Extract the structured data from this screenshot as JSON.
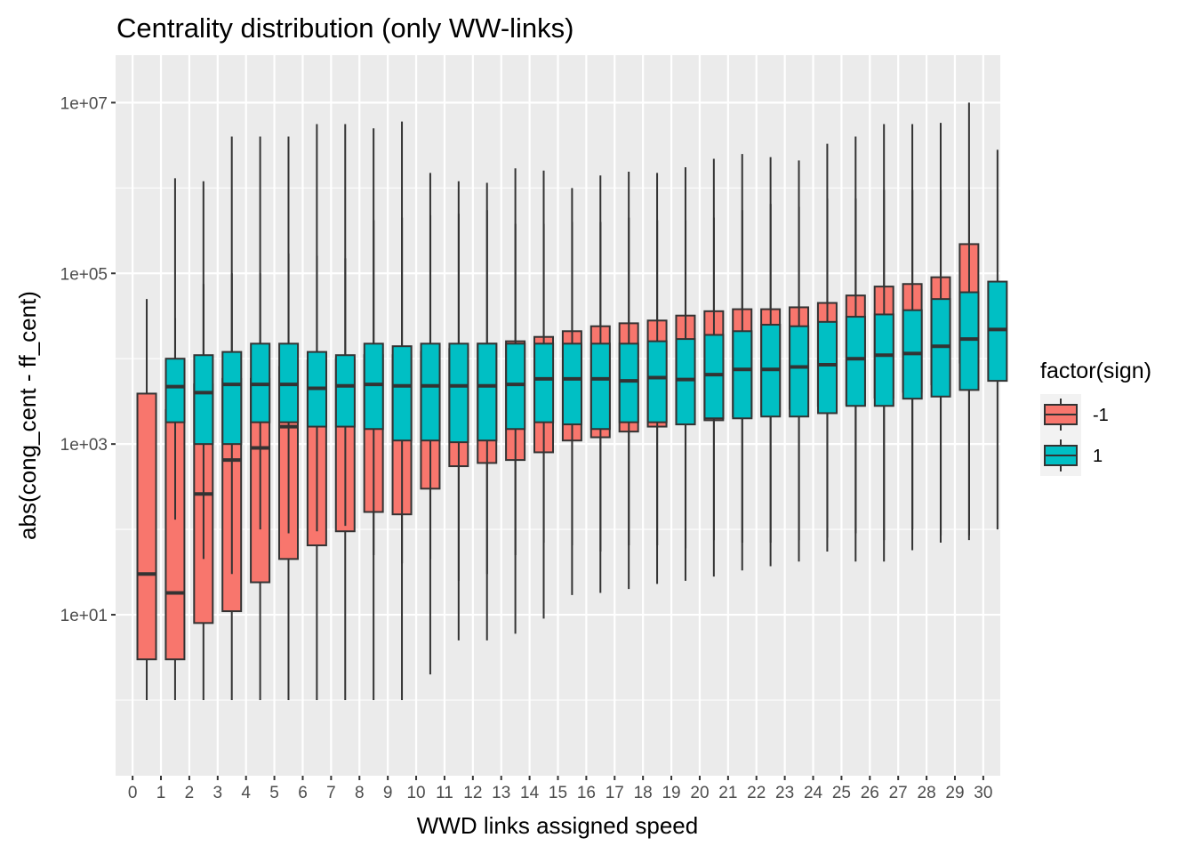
{
  "chart_data": {
    "type": "boxplot",
    "title": "Centrality distribution (only WW-links)",
    "xlabel": "WWD links assigned speed",
    "ylabel": "abs(cong_cent - ff_cent)",
    "y_scale": "log10",
    "ylim": [
      0.13,
      36000000.0
    ],
    "y_ticks": [
      {
        "value": 10,
        "label": "1e+01"
      },
      {
        "value": 1000,
        "label": "1e+03"
      },
      {
        "value": 100000,
        "label": "1e+05"
      },
      {
        "value": 10000000,
        "label": "1e+07"
      }
    ],
    "categories": [
      "0",
      "1",
      "2",
      "3",
      "4",
      "5",
      "6",
      "7",
      "8",
      "9",
      "10",
      "11",
      "12",
      "13",
      "14",
      "15",
      "16",
      "17",
      "18",
      "19",
      "20",
      "21",
      "22",
      "23",
      "24",
      "25",
      "26",
      "27",
      "28",
      "29",
      "30"
    ],
    "background": "#ebebeb",
    "grid": true,
    "legend": {
      "title": "factor(sign)",
      "position": "right"
    },
    "series": [
      {
        "name": "-1",
        "color": "#F8766D",
        "boxes": [
          {
            "x": "1",
            "min": 1,
            "q1": 3,
            "median": 30,
            "q3": 3900,
            "max": 50000
          },
          {
            "x": "2",
            "min": 1,
            "q1": 3,
            "median": 18,
            "q3": 2500,
            "max": 1300000
          },
          {
            "x": "3",
            "min": 1,
            "q1": 8,
            "median": 260,
            "q3": 5000,
            "max": 1200000
          },
          {
            "x": "4",
            "min": 1,
            "q1": 11,
            "median": 650,
            "q3": 5800,
            "max": 4000000
          },
          {
            "x": "5",
            "min": 1,
            "q1": 24,
            "median": 900,
            "q3": 5800,
            "max": 4000000
          },
          {
            "x": "6",
            "min": 1,
            "q1": 45,
            "median": 1600,
            "q3": 8000,
            "max": 4000000
          },
          {
            "x": "7",
            "min": 1,
            "q1": 65,
            "median": 1900,
            "q3": 9500,
            "max": 5600000
          },
          {
            "x": "8",
            "min": 1,
            "q1": 95,
            "median": 2100,
            "q3": 10000,
            "max": 5600000
          },
          {
            "x": "9",
            "min": 1,
            "q1": 160,
            "median": 2500,
            "q3": 11000,
            "max": 5000000
          },
          {
            "x": "10",
            "min": 1,
            "q1": 150,
            "median": 2700,
            "q3": 11000,
            "max": 6000000
          },
          {
            "x": "11",
            "min": 2,
            "q1": 300,
            "median": 3300,
            "q3": 12000,
            "max": 1500000
          },
          {
            "x": "12",
            "min": 5,
            "q1": 550,
            "median": 3600,
            "q3": 13000,
            "max": 1200000
          },
          {
            "x": "13",
            "min": 5,
            "q1": 600,
            "median": 4000,
            "q3": 15000,
            "max": 1150000
          },
          {
            "x": "14",
            "min": 6,
            "q1": 650,
            "median": 4700,
            "q3": 16000,
            "max": 1700000
          },
          {
            "x": "15",
            "min": 9,
            "q1": 800,
            "median": 5000,
            "q3": 18000,
            "max": 1600000
          },
          {
            "x": "16",
            "min": 17,
            "q1": 1100,
            "median": 6000,
            "q3": 21000,
            "max": 1000000
          },
          {
            "x": "17",
            "min": 18,
            "q1": 1200,
            "median": 6500,
            "q3": 24000,
            "max": 1400000
          },
          {
            "x": "18",
            "min": 20,
            "q1": 1400,
            "median": 7000,
            "q3": 26000,
            "max": 1550000
          },
          {
            "x": "19",
            "min": 23,
            "q1": 1600,
            "median": 7500,
            "q3": 28000,
            "max": 1500000
          },
          {
            "x": "20",
            "min": 25,
            "q1": 1700,
            "median": 8000,
            "q3": 32000,
            "max": 1750000
          },
          {
            "x": "21",
            "min": 28,
            "q1": 1900,
            "median": 9000,
            "q3": 36000,
            "max": 2200000
          },
          {
            "x": "22",
            "min": 33,
            "q1": 2100,
            "median": 9500,
            "q3": 38000,
            "max": 2500000
          },
          {
            "x": "23",
            "min": 37,
            "q1": 2200,
            "median": 10000,
            "q3": 38000,
            "max": 2300000
          },
          {
            "x": "24",
            "min": 42,
            "q1": 2600,
            "median": 11000,
            "q3": 40000,
            "max": 2100000
          },
          {
            "x": "25",
            "min": 55,
            "q1": 2800,
            "median": 11500,
            "q3": 45000,
            "max": 3300000
          },
          {
            "x": "26",
            "min": 42,
            "q1": 2900,
            "median": 14000,
            "q3": 55000,
            "max": 4000000
          },
          {
            "x": "27",
            "min": 42,
            "q1": 3500,
            "median": 16000,
            "q3": 70000,
            "max": 5600000
          },
          {
            "x": "28",
            "min": 57,
            "q1": 4100,
            "median": 19000,
            "q3": 75000,
            "max": 5600000
          },
          {
            "x": "29",
            "min": 70,
            "q1": 5000,
            "median": 22000,
            "q3": 90000,
            "max": 5800000
          },
          {
            "x": "30",
            "min": 75,
            "q1": 9000,
            "median": 42000,
            "q3": 220000,
            "max": 10000000
          }
        ]
      },
      {
        "name": "1",
        "color": "#00BFC4",
        "boxes": [
          {
            "x": "1",
            "min": 130,
            "q1": 1800,
            "median": 4700,
            "q3": 10000,
            "max": 30000
          },
          {
            "x": "2",
            "min": 45,
            "q1": 1000,
            "median": 4000,
            "q3": 11000,
            "max": 75000
          },
          {
            "x": "3",
            "min": 30,
            "q1": 1000,
            "median": 5000,
            "q3": 12000,
            "max": 100000
          },
          {
            "x": "4",
            "min": 100,
            "q1": 1800,
            "median": 5000,
            "q3": 15000,
            "max": 100000
          },
          {
            "x": "5",
            "min": 90,
            "q1": 1800,
            "median": 5000,
            "q3": 15000,
            "max": 170000
          },
          {
            "x": "6",
            "min": 95,
            "q1": 1600,
            "median": 4500,
            "q3": 12000,
            "max": 160000
          },
          {
            "x": "7",
            "min": 110,
            "q1": 1600,
            "median": 4800,
            "q3": 11000,
            "max": 150000
          },
          {
            "x": "8",
            "min": 50,
            "q1": 1500,
            "median": 5000,
            "q3": 15000,
            "max": 420000
          },
          {
            "x": "9",
            "min": 40,
            "q1": 1100,
            "median": 4800,
            "q3": 14000,
            "max": 450000
          },
          {
            "x": "10",
            "min": 45,
            "q1": 1100,
            "median": 4800,
            "q3": 15000,
            "max": 480000
          },
          {
            "x": "11",
            "min": 25,
            "q1": 1050,
            "median": 4800,
            "q3": 15000,
            "max": 500000
          },
          {
            "x": "12",
            "min": 30,
            "q1": 1100,
            "median": 4800,
            "q3": 15000,
            "max": 550000
          },
          {
            "x": "13",
            "min": 50,
            "q1": 1500,
            "median": 5000,
            "q3": 15000,
            "max": 380000
          },
          {
            "x": "14",
            "min": 70,
            "q1": 1800,
            "median": 5800,
            "q3": 15000,
            "max": 380000
          },
          {
            "x": "15",
            "min": 65,
            "q1": 1700,
            "median": 5800,
            "q3": 15000,
            "max": 400000
          },
          {
            "x": "16",
            "min": 55,
            "q1": 1500,
            "median": 5800,
            "q3": 15000,
            "max": 400000
          },
          {
            "x": "17",
            "min": 65,
            "q1": 1800,
            "median": 5500,
            "q3": 15000,
            "max": 450000
          },
          {
            "x": "18",
            "min": 65,
            "q1": 1800,
            "median": 6000,
            "q3": 16000,
            "max": 420000
          },
          {
            "x": "19",
            "min": 60,
            "q1": 1700,
            "median": 5700,
            "q3": 17000,
            "max": 420000
          },
          {
            "x": "20",
            "min": 75,
            "q1": 2000,
            "median": 6500,
            "q3": 19000,
            "max": 450000
          },
          {
            "x": "21",
            "min": 70,
            "q1": 2000,
            "median": 7500,
            "q3": 21000,
            "max": 550000
          },
          {
            "x": "22",
            "min": 70,
            "q1": 2100,
            "median": 7500,
            "q3": 25000,
            "max": 650000
          },
          {
            "x": "23",
            "min": 75,
            "q1": 2100,
            "median": 8000,
            "q3": 24000,
            "max": 600000
          },
          {
            "x": "24",
            "min": 80,
            "q1": 2300,
            "median": 8500,
            "q3": 27000,
            "max": 750000
          },
          {
            "x": "25",
            "min": 90,
            "q1": 2800,
            "median": 10000,
            "q3": 31000,
            "max": 750000
          },
          {
            "x": "26",
            "min": 75,
            "q1": 2800,
            "median": 11000,
            "q3": 33000,
            "max": 950000
          },
          {
            "x": "27",
            "min": 100,
            "q1": 3400,
            "median": 11500,
            "q3": 37000,
            "max": 950000
          },
          {
            "x": "28",
            "min": 85,
            "q1": 3600,
            "median": 14000,
            "q3": 50000,
            "max": 950000
          },
          {
            "x": "29",
            "min": 85,
            "q1": 4300,
            "median": 17000,
            "q3": 60000,
            "max": 950000
          },
          {
            "x": "30",
            "min": 100,
            "q1": 5500,
            "median": 22000,
            "q3": 80000,
            "max": 2800000
          }
        ]
      }
    ]
  }
}
